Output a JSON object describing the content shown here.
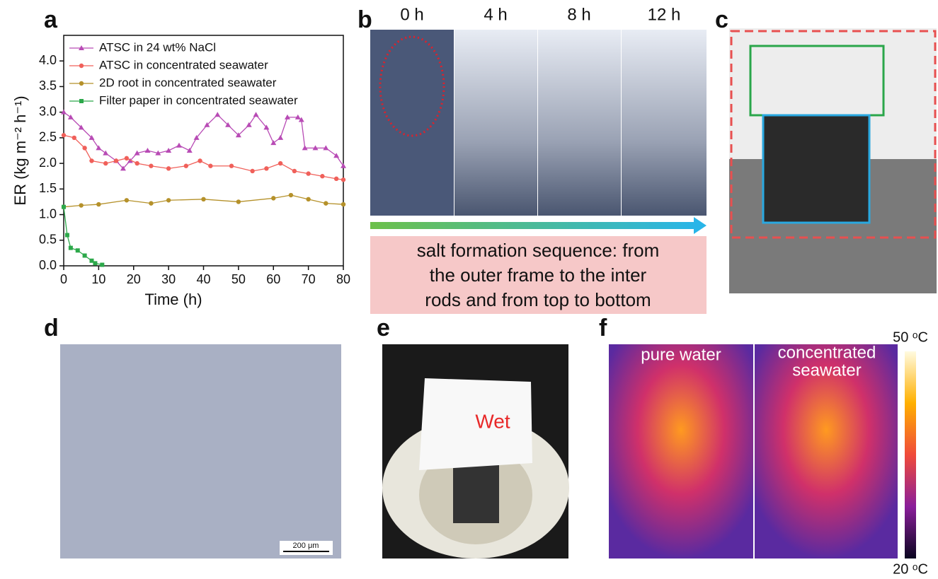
{
  "panel_labels": [
    "a",
    "b",
    "c",
    "d",
    "e",
    "f"
  ],
  "chart_data": {
    "type": "line",
    "x_label": "Time (h)",
    "y_label": "ER (kg m⁻² h⁻¹)",
    "xlim": [
      0,
      80
    ],
    "xticks": [
      0,
      10,
      20,
      30,
      40,
      50,
      60,
      70,
      80
    ],
    "ylim": [
      0,
      4.5
    ],
    "yticks": [
      {
        "value": 0,
        "label": "0.0"
      },
      0.5,
      {
        "value": 1,
        "label": "1.0"
      },
      1.5,
      {
        "value": 2,
        "label": "2.0"
      },
      2.5,
      {
        "value": 3,
        "label": "3.0"
      },
      3.5,
      {
        "value": 4,
        "label": "4.0"
      }
    ],
    "legend": "upper left",
    "series": [
      {
        "name": "ATSC in 24 wt% NaCl",
        "color": "#b84bb5",
        "marker": "triangle",
        "x": [
          0,
          2,
          5,
          8,
          10,
          12,
          15,
          17,
          19,
          21,
          24,
          27,
          30,
          33,
          36,
          38,
          41,
          44,
          47,
          50,
          53,
          55,
          58,
          60,
          62,
          64,
          67,
          68,
          69,
          72,
          75,
          78,
          80
        ],
        "values": [
          3.0,
          2.9,
          2.7,
          2.5,
          2.3,
          2.2,
          2.05,
          1.9,
          2.05,
          2.2,
          2.25,
          2.2,
          2.25,
          2.35,
          2.25,
          2.5,
          2.75,
          2.95,
          2.75,
          2.55,
          2.75,
          2.95,
          2.7,
          2.4,
          2.5,
          2.9,
          2.9,
          2.85,
          2.3,
          2.3,
          2.3,
          2.15,
          1.95
        ]
      },
      {
        "name": "ATSC in concentrated seawater",
        "color": "#f0605a",
        "marker": "circle",
        "x": [
          0,
          3,
          6,
          8,
          12,
          15,
          18,
          21,
          25,
          30,
          35,
          39,
          42,
          48,
          54,
          58,
          62,
          66,
          70,
          74,
          78,
          80
        ],
        "values": [
          2.55,
          2.5,
          2.3,
          2.05,
          2.0,
          2.05,
          2.1,
          2.0,
          1.95,
          1.9,
          1.95,
          2.05,
          1.95,
          1.95,
          1.85,
          1.9,
          2.0,
          1.85,
          1.8,
          1.75,
          1.7,
          1.68
        ]
      },
      {
        "name": "2D root in concentrated seawater",
        "color": "#b5912a",
        "marker": "circle",
        "x": [
          0,
          5,
          10,
          18,
          25,
          30,
          40,
          50,
          60,
          65,
          70,
          75,
          80
        ],
        "values": [
          1.15,
          1.18,
          1.2,
          1.28,
          1.22,
          1.28,
          1.3,
          1.25,
          1.32,
          1.38,
          1.3,
          1.22,
          1.2
        ]
      },
      {
        "name": "Filter paper in concentrated seawater",
        "color": "#2ca84a",
        "marker": "square",
        "x": [
          0,
          1,
          2,
          4,
          6,
          8,
          9,
          11
        ],
        "values": [
          1.15,
          0.6,
          0.35,
          0.3,
          0.2,
          0.1,
          0.05,
          0.02
        ]
      }
    ]
  },
  "panel_b": {
    "times": [
      "0 h",
      "4 h",
      "8 h",
      "12 h"
    ],
    "caption": [
      "salt formation sequence: from",
      "the outer frame to the inter",
      "rods and from top to bottom"
    ]
  },
  "panel_d": {
    "scale_bar": "200 μm"
  },
  "panel_e": {
    "label": "Wet"
  },
  "panel_f": {
    "left": "pure water",
    "right": [
      "concentrated",
      "seawater"
    ],
    "colorbar_max": "50 ᵒC",
    "colorbar_min": "20 ᵒC"
  }
}
